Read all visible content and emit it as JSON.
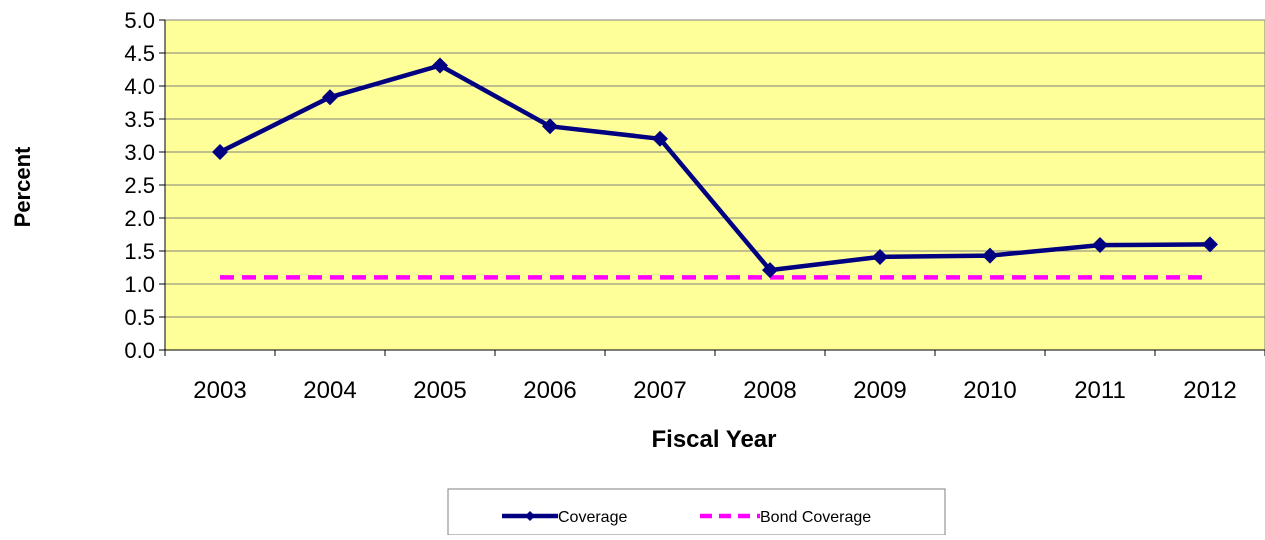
{
  "chart_data": {
    "type": "line",
    "title": "",
    "xlabel": "Fiscal Year",
    "ylabel": "Percent",
    "categories": [
      "2003",
      "2004",
      "2005",
      "2006",
      "2007",
      "2008",
      "2009",
      "2010",
      "2011",
      "2012"
    ],
    "yticks": [
      "0.0",
      "0.5",
      "1.0",
      "1.5",
      "2.0",
      "2.5",
      "3.0",
      "3.5",
      "4.0",
      "4.5",
      "5.0"
    ],
    "ylim": [
      0,
      5
    ],
    "grid": true,
    "legend_position": "bottom",
    "plot_background": "#FFFF99",
    "series": [
      {
        "name": "Coverage",
        "values": [
          3.0,
          3.83,
          4.31,
          3.39,
          3.2,
          1.21,
          1.41,
          1.43,
          1.59,
          1.6
        ],
        "color": "#000080",
        "style": "solid",
        "marker": "diamond"
      },
      {
        "name": "Bond Coverage",
        "values": [
          1.1,
          1.1,
          1.1,
          1.1,
          1.1,
          1.1,
          1.1,
          1.1,
          1.1,
          1.1
        ],
        "color": "#FF00FF",
        "style": "dashed",
        "marker": "none"
      }
    ]
  }
}
